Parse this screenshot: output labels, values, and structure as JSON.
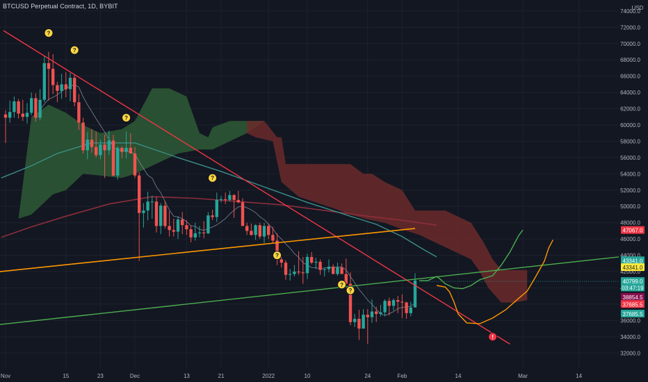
{
  "header": {
    "title": "BTCUSD Perpetual Contract, 1D, BYBIT"
  },
  "colors": {
    "background": "#131722",
    "up": "#26a69a",
    "down": "#ef5350",
    "cloud_bull": "#2e5a35",
    "cloud_bear": "#6b2a2a",
    "trendline_red": "#f23645",
    "trendline_orange": "#ff9800",
    "trendline_green": "#4caf50",
    "ma_teal": "#3b8f88",
    "ma_maroon": "#8c2e3a",
    "tenkan": "#8f9bb3"
  },
  "chart_data": {
    "type": "candlestick",
    "title": "BTCUSD Perpetual Contract, 1D, BYBIT",
    "currency": "USD",
    "ylim": [
      31000,
      74500
    ],
    "y_ticks": [
      "32000.0",
      "34000.0",
      "36000.0",
      "38000.0",
      "40000.0",
      "42000.0",
      "44000.0",
      "46000.0",
      "48000.0",
      "50000.0",
      "52000.0",
      "54000.0",
      "56000.0",
      "58000.0",
      "60000.0",
      "62000.0",
      "64000.0",
      "66000.0",
      "68000.0",
      "70000.0",
      "72000.0",
      "74000.0"
    ],
    "x_labels": [
      {
        "label": "Nov",
        "day": 0
      },
      {
        "label": "15",
        "day": 14
      },
      {
        "label": "23",
        "day": 22
      },
      {
        "label": "Dec",
        "day": 30
      },
      {
        "label": "13",
        "day": 42
      },
      {
        "label": "21",
        "day": 50
      },
      {
        "label": "2022",
        "day": 61
      },
      {
        "label": "10",
        "day": 70
      },
      {
        "label": "24",
        "day": 84
      },
      {
        "label": "Feb",
        "day": 92
      },
      {
        "label": "14",
        "day": 105
      },
      {
        "label": "Mar",
        "day": 120
      },
      {
        "label": "14",
        "day": 133
      }
    ],
    "candles": [
      [
        0,
        61300,
        61800,
        57800,
        60900
      ],
      [
        1,
        60900,
        63000,
        60300,
        61600
      ],
      [
        2,
        61600,
        63500,
        60900,
        62900
      ],
      [
        3,
        62900,
        63200,
        60800,
        61400
      ],
      [
        4,
        61400,
        63100,
        60500,
        61000
      ],
      [
        5,
        61000,
        62700,
        60200,
        61500
      ],
      [
        6,
        61500,
        64000,
        61200,
        63300
      ],
      [
        7,
        63300,
        63900,
        60400,
        60900
      ],
      [
        8,
        60900,
        64400,
        60600,
        63100
      ],
      [
        9,
        63100,
        68500,
        62800,
        67600
      ],
      [
        10,
        67600,
        69000,
        63000,
        66900
      ],
      [
        11,
        66900,
        68700,
        63800,
        64900
      ],
      [
        12,
        64900,
        65300,
        62800,
        64200
      ],
      [
        13,
        64200,
        66300,
        63200,
        65000
      ],
      [
        14,
        65000,
        66500,
        63400,
        64400
      ],
      [
        15,
        64400,
        66400,
        62900,
        65800
      ],
      [
        16,
        65800,
        66200,
        62300,
        62800
      ],
      [
        17,
        62800,
        63800,
        59400,
        60300
      ],
      [
        18,
        60300,
        60900,
        56500,
        56900
      ],
      [
        19,
        56900,
        59100,
        55800,
        58200
      ],
      [
        20,
        58200,
        59500,
        56600,
        57300
      ],
      [
        21,
        57300,
        59200,
        56000,
        56300
      ],
      [
        22,
        56300,
        58200,
        55800,
        57600
      ],
      [
        23,
        57600,
        58800,
        53500,
        56900
      ],
      [
        24,
        56900,
        59300,
        56300,
        58100
      ],
      [
        25,
        58100,
        58800,
        53700,
        53800
      ],
      [
        26,
        53800,
        57400,
        53300,
        57200
      ],
      [
        27,
        57200,
        57400,
        55900,
        56700
      ],
      [
        28,
        56700,
        59200,
        55900,
        57200
      ],
      [
        29,
        57200,
        59000,
        56800,
        56500
      ],
      [
        30,
        56500,
        57300,
        53500,
        53800
      ],
      [
        31,
        53800,
        54200,
        43300,
        49200
      ],
      [
        32,
        49200,
        50400,
        47400,
        49500
      ],
      [
        33,
        49500,
        51800,
        48300,
        50600
      ],
      [
        34,
        50600,
        51300,
        48500,
        50600
      ],
      [
        35,
        50600,
        51200,
        46800,
        47600
      ],
      [
        36,
        47600,
        50400,
        46600,
        50100
      ],
      [
        37,
        50100,
        50700,
        47300,
        47600
      ],
      [
        38,
        47600,
        49400,
        46300,
        47100
      ],
      [
        39,
        47100,
        48500,
        46300,
        46900
      ],
      [
        40,
        46900,
        48800,
        46000,
        48400
      ],
      [
        41,
        48400,
        49300,
        46600,
        47700
      ],
      [
        42,
        47700,
        48300,
        46500,
        47200
      ],
      [
        43,
        47200,
        47700,
        45600,
        46200
      ],
      [
        44,
        46200,
        48000,
        45800,
        46700
      ],
      [
        45,
        46700,
        47600,
        46200,
        46800
      ],
      [
        46,
        46800,
        48200,
        46100,
        46700
      ],
      [
        47,
        46700,
        49300,
        46600,
        48900
      ],
      [
        48,
        48900,
        49600,
        48300,
        48700
      ],
      [
        49,
        48700,
        51700,
        48100,
        50800
      ],
      [
        50,
        50800,
        51300,
        50500,
        50900
      ],
      [
        51,
        50900,
        51700,
        50300,
        50800
      ],
      [
        52,
        50800,
        51900,
        50600,
        51400
      ],
      [
        53,
        51400,
        51500,
        48600,
        50800
      ],
      [
        54,
        50800,
        51900,
        50400,
        50500
      ],
      [
        55,
        50500,
        51000,
        48000,
        47600
      ],
      [
        56,
        47600,
        48000,
        46500,
        47000
      ],
      [
        57,
        47000,
        47900,
        46400,
        46500
      ],
      [
        58,
        46500,
        47800,
        45900,
        47700
      ],
      [
        59,
        47700,
        48000,
        46000,
        46300
      ],
      [
        60,
        46300,
        48000,
        45500,
        47600
      ],
      [
        61,
        47600,
        47900,
        46000,
        46500
      ],
      [
        62,
        46500,
        47500,
        45500,
        45800
      ],
      [
        63,
        45800,
        46700,
        42800,
        43500
      ],
      [
        64,
        43500,
        43800,
        42500,
        43100
      ],
      [
        65,
        43100,
        43400,
        41000,
        41600
      ],
      [
        66,
        41600,
        42300,
        40900,
        41700
      ],
      [
        67,
        41700,
        42800,
        41400,
        42000
      ],
      [
        68,
        42000,
        44500,
        41600,
        41900
      ],
      [
        69,
        41900,
        43800,
        40500,
        41800
      ],
      [
        70,
        41800,
        44200,
        41100,
        43800
      ],
      [
        71,
        43800,
        44400,
        42900,
        43100
      ],
      [
        72,
        43100,
        43700,
        42300,
        43200
      ],
      [
        73,
        43200,
        43500,
        41600,
        42200
      ],
      [
        74,
        42200,
        42400,
        41400,
        42300
      ],
      [
        75,
        42300,
        43500,
        41900,
        42600
      ],
      [
        76,
        42600,
        42900,
        41700,
        41700
      ],
      [
        77,
        41700,
        43100,
        41500,
        42500
      ],
      [
        78,
        42500,
        43000,
        41700,
        41700
      ],
      [
        79,
        41700,
        43600,
        40600,
        40500
      ],
      [
        80,
        40500,
        41900,
        35400,
        35800
      ],
      [
        81,
        35800,
        36800,
        35200,
        36200
      ],
      [
        82,
        36200,
        37300,
        33600,
        35000
      ],
      [
        83,
        35000,
        37400,
        35100,
        36700
      ],
      [
        84,
        36700,
        37400,
        33100,
        36400
      ],
      [
        85,
        36400,
        38600,
        35700,
        37100
      ],
      [
        86,
        37100,
        37700,
        35800,
        36800
      ],
      [
        87,
        36800,
        37900,
        36500,
        37000
      ],
      [
        88,
        37000,
        38600,
        36500,
        38400
      ],
      [
        89,
        38400,
        38800,
        36600,
        37800
      ],
      [
        90,
        37800,
        38700,
        37200,
        38500
      ],
      [
        91,
        38500,
        39000,
        36900,
        38300
      ],
      [
        92,
        38300,
        39200,
        36300,
        38200
      ],
      [
        93,
        38200,
        38300,
        36200,
        36900
      ],
      [
        94,
        36900,
        38300,
        36500,
        37600
      ],
      [
        95,
        37600,
        41800,
        37600,
        40900
      ]
    ],
    "markers": [
      {
        "type": "question",
        "day": 10,
        "price": 71300
      },
      {
        "type": "question",
        "day": 16,
        "price": 69200
      },
      {
        "type": "question",
        "day": 28,
        "price": 60900
      },
      {
        "type": "question",
        "day": 48,
        "price": 53500
      },
      {
        "type": "question",
        "day": 63,
        "price": 44000
      },
      {
        "type": "question",
        "day": 78,
        "price": 40400
      },
      {
        "type": "question",
        "day": 80,
        "price": 39700
      },
      {
        "type": "alert",
        "day": 113,
        "price": 34000
      }
    ],
    "current_price_line": 40799.0,
    "price_tags": [
      {
        "text": "47067.0",
        "price": 47067,
        "bg": "#f23645",
        "dark": false
      },
      {
        "text": "43341.0",
        "price": 43341,
        "bg": "#26a69a",
        "dark": false
      },
      {
        "text": "43341.0",
        "price": 42500,
        "bg": "#ffeb3b",
        "dark": true
      },
      {
        "text": "40799.0",
        "price": 40799,
        "bg": "#26a69a",
        "dark": false
      },
      {
        "text": "03:47:19",
        "price": 40000,
        "bg": "#26a69a",
        "dark": false
      },
      {
        "text": "38854.5",
        "price": 38854,
        "bg": "#880e4f",
        "dark": false
      },
      {
        "text": "37685.5",
        "price": 37970,
        "bg": "#f23645",
        "dark": false
      },
      {
        "text": "37685.5",
        "price": 36800,
        "bg": "#26a69a",
        "dark": false
      }
    ]
  }
}
